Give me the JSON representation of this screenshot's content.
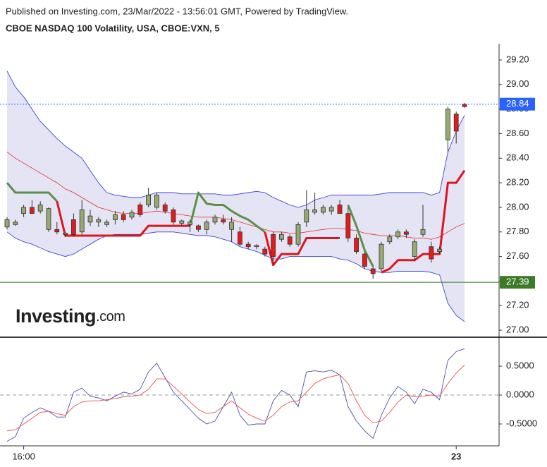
{
  "header": {
    "published": "Published on Investing.com, 23/Mar/2022 - 13:56:01 GMT, Powered by TradingView."
  },
  "logo": {
    "brand": "Investing",
    "suffix": ".com"
  },
  "chart_data": [
    {
      "type": "candlestick",
      "title": "CBOE NASDAQ 100 Volatility, USA, CBOE:VXN, 5",
      "categories": [
        null,
        null,
        "16:00",
        null,
        null,
        null,
        null,
        null,
        null,
        null,
        null,
        null,
        null,
        null,
        null,
        null,
        null,
        null,
        null,
        null,
        null,
        null,
        null,
        null,
        null,
        null,
        null,
        null,
        null,
        null,
        null,
        null,
        null,
        null,
        null,
        null,
        null,
        null,
        null,
        null,
        null,
        null,
        null,
        null,
        null,
        null,
        null,
        null,
        null,
        null,
        null,
        null,
        null,
        null,
        "23",
        null
      ],
      "open": [
        27.84,
        27.86,
        27.95,
        28.0,
        27.97,
        27.82,
        27.82,
        27.78,
        27.9,
        27.8,
        27.88,
        27.88,
        27.86,
        27.9,
        27.94,
        27.92,
        28.02,
        28.02,
        28.0,
        28.02,
        27.98,
        27.87,
        27.86,
        27.85,
        27.82,
        27.88,
        27.9,
        27.82,
        27.8,
        27.7,
        27.68,
        27.66,
        27.78,
        27.74,
        27.76,
        27.7,
        27.88,
        27.96,
        27.96,
        27.97,
        28.02,
        27.95,
        27.75,
        27.62,
        27.5,
        27.5,
        27.72,
        27.76,
        27.8,
        27.6,
        27.78,
        27.68,
        27.64,
        28.55,
        28.76,
        28.84
      ],
      "high": [
        27.92,
        27.9,
        28.02,
        28.06,
        28.05,
        28.0,
        27.88,
        27.8,
        27.95,
        28.06,
        27.98,
        27.92,
        27.9,
        27.97,
        27.97,
        27.98,
        28.04,
        28.16,
        28.12,
        28.04,
        28.0,
        27.9,
        27.9,
        27.86,
        27.9,
        27.94,
        27.94,
        27.92,
        27.84,
        27.72,
        27.7,
        27.68,
        27.8,
        27.8,
        27.78,
        27.88,
        28.14,
        28.12,
        28.02,
        28.02,
        28.06,
        28.0,
        27.78,
        27.64,
        27.52,
        27.72,
        27.78,
        27.82,
        27.82,
        27.74,
        28.02,
        27.72,
        27.68,
        28.82,
        28.78,
        28.85
      ],
      "low": [
        27.82,
        27.85,
        27.92,
        27.96,
        27.95,
        27.8,
        27.78,
        27.76,
        27.76,
        27.78,
        27.85,
        27.84,
        27.84,
        27.86,
        27.88,
        27.9,
        27.92,
        28.0,
        27.98,
        27.95,
        27.86,
        27.85,
        27.8,
        27.8,
        27.78,
        27.86,
        27.86,
        27.72,
        27.68,
        27.66,
        27.66,
        27.6,
        27.54,
        27.72,
        27.68,
        27.68,
        27.84,
        27.94,
        27.94,
        27.94,
        27.96,
        27.72,
        27.62,
        27.5,
        27.42,
        27.48,
        27.7,
        27.74,
        27.75,
        27.56,
        27.76,
        27.55,
        27.62,
        28.45,
        28.52,
        28.81
      ],
      "close": [
        27.9,
        27.88,
        28.0,
        27.95,
        28.02,
        27.99,
        27.8,
        27.79,
        27.78,
        27.98,
        27.93,
        27.9,
        27.88,
        27.94,
        27.9,
        27.96,
        27.94,
        28.1,
        28.1,
        27.97,
        27.88,
        27.89,
        27.88,
        27.82,
        27.88,
        27.92,
        27.88,
        27.88,
        27.7,
        27.68,
        27.69,
        27.62,
        27.6,
        27.78,
        27.7,
        27.86,
        27.98,
        27.98,
        28.0,
        28.0,
        27.95,
        27.75,
        27.64,
        27.52,
        27.46,
        27.7,
        27.76,
        27.8,
        27.78,
        27.72,
        27.82,
        27.58,
        27.66,
        28.8,
        28.62,
        28.82
      ],
      "up_color": "#97a96f",
      "down_color": "#e31b1b",
      "upper": [
        29.11,
        28.98,
        28.9,
        28.8,
        28.7,
        28.63,
        28.56,
        28.5,
        28.45,
        28.4,
        28.3,
        28.2,
        28.12,
        28.1,
        28.09,
        28.08,
        28.08,
        28.1,
        28.12,
        28.12,
        28.12,
        28.11,
        28.11,
        28.11,
        28.11,
        28.11,
        28.1,
        28.1,
        28.11,
        28.12,
        28.13,
        28.12,
        28.08,
        28.05,
        28.02,
        28.0,
        28.02,
        28.06,
        28.08,
        28.1,
        28.1,
        28.1,
        28.1,
        28.1,
        28.1,
        28.11,
        28.12,
        28.12,
        28.12,
        28.12,
        28.12,
        28.1,
        28.12,
        28.45,
        28.62,
        28.75
      ],
      "middle": [
        28.45,
        28.4,
        28.36,
        28.32,
        28.28,
        28.24,
        28.2,
        28.15,
        28.12,
        28.08,
        28.04,
        28.0,
        27.98,
        27.96,
        27.95,
        27.95,
        27.95,
        27.96,
        27.97,
        27.96,
        27.95,
        27.94,
        27.93,
        27.92,
        27.92,
        27.92,
        27.91,
        27.9,
        27.88,
        27.86,
        27.84,
        27.82,
        27.8,
        27.8,
        27.79,
        27.79,
        27.8,
        27.81,
        27.82,
        27.83,
        27.83,
        27.82,
        27.81,
        27.79,
        27.78,
        27.77,
        27.77,
        27.77,
        27.76,
        27.75,
        27.75,
        27.74,
        27.76,
        27.8,
        27.84,
        27.87
      ],
      "lower": [
        27.8,
        27.75,
        27.72,
        27.7,
        27.67,
        27.64,
        27.62,
        27.6,
        27.62,
        27.66,
        27.7,
        27.74,
        27.77,
        27.78,
        27.78,
        27.78,
        27.78,
        27.79,
        27.8,
        27.8,
        27.8,
        27.79,
        27.78,
        27.77,
        27.77,
        27.76,
        27.74,
        27.72,
        27.68,
        27.66,
        27.64,
        27.61,
        27.58,
        27.58,
        27.6,
        27.6,
        27.6,
        27.6,
        27.6,
        27.6,
        27.58,
        27.57,
        27.54,
        27.5,
        27.48,
        27.47,
        27.47,
        27.48,
        27.48,
        27.48,
        27.48,
        27.47,
        27.45,
        27.22,
        27.12,
        27.07
      ],
      "band_color": "#3b46d6",
      "band_fill": "#e4e4f4",
      "middle_color": "#e0302a",
      "trend_up": [
        28.2,
        28.12,
        28.12,
        28.12,
        28.12,
        28.12,
        28.05,
        null,
        null,
        null,
        null,
        null,
        null,
        null,
        null,
        null,
        null,
        null,
        null,
        null,
        null,
        null,
        27.85,
        28.12,
        28.03,
        28.02,
        28.02,
        27.97,
        27.93,
        27.9,
        27.85,
        27.8,
        null,
        null,
        null,
        null,
        null,
        null,
        null,
        null,
        null,
        28.02,
        27.85,
        27.65,
        27.52,
        null,
        null,
        null,
        null,
        null,
        null,
        null,
        null,
        null,
        null,
        null
      ],
      "trend_down": [
        null,
        null,
        null,
        null,
        null,
        null,
        28.05,
        27.77,
        27.77,
        27.77,
        27.77,
        27.77,
        27.77,
        27.77,
        27.77,
        27.77,
        27.77,
        27.85,
        27.85,
        27.85,
        27.85,
        27.85,
        27.85,
        null,
        null,
        null,
        null,
        null,
        null,
        null,
        null,
        27.8,
        27.53,
        27.62,
        27.62,
        27.62,
        27.75,
        27.75,
        27.75,
        27.75,
        27.75,
        null,
        null,
        null,
        null,
        27.47,
        27.5,
        27.57,
        27.57,
        27.57,
        27.62,
        27.62,
        27.62,
        28.2,
        28.2,
        28.3
      ],
      "trend_up_color": "#5c8f48",
      "trend_down_color": "#e0141c",
      "price_lines": [
        {
          "value": 28.84,
          "color": "#2962ff",
          "dashed": true
        },
        {
          "value": 27.39,
          "color": "#3d7a27",
          "dashed": false
        }
      ],
      "ylim": [
        26.943,
        29.332
      ],
      "yticks": [
        {
          "value": 27,
          "label": "27.00"
        },
        {
          "value": 27.2,
          "label": "27.20"
        },
        {
          "value": 27.4,
          "label": "27.40"
        },
        {
          "value": 27.6,
          "label": "27.60"
        },
        {
          "value": 27.8,
          "label": "27.80"
        },
        {
          "value": 28,
          "label": "28.00"
        },
        {
          "value": 28.2,
          "label": "28.20"
        },
        {
          "value": 28.4,
          "label": "28.40"
        },
        {
          "value": 28.6,
          "label": "28.60"
        },
        {
          "value": 28.8,
          "label": "28.80"
        },
        {
          "value": 29,
          "label": "29.00"
        },
        {
          "value": 29.2,
          "label": "29.20"
        }
      ]
    },
    {
      "type": "line",
      "series": [
        {
          "color": "#4a4fb0",
          "values": [
            -0.8,
            -0.72,
            -0.4,
            -0.3,
            -0.22,
            -0.28,
            -0.38,
            -0.38,
            0.05,
            0.12,
            -0.02,
            -0.05,
            -0.1,
            -0.02,
            0.05,
            0.02,
            0.1,
            0.4,
            0.55,
            0.3,
            0.05,
            -0.1,
            -0.25,
            -0.4,
            -0.5,
            -0.45,
            -0.2,
            0.05,
            -0.35,
            -0.52,
            -0.5,
            -0.5,
            -0.1,
            0.08,
            0.0,
            -0.2,
            0.4,
            0.42,
            0.4,
            0.43,
            0.35,
            -0.2,
            -0.45,
            -0.62,
            -0.75,
            -0.35,
            -0.05,
            0.15,
            0.05,
            -0.15,
            0.1,
            0.05,
            -0.08,
            0.6,
            0.75,
            0.8
          ]
        },
        {
          "color": "#e8504a",
          "values": [
            -0.62,
            -0.6,
            -0.5,
            -0.4,
            -0.3,
            -0.28,
            -0.32,
            -0.35,
            -0.2,
            -0.12,
            -0.1,
            -0.1,
            -0.08,
            -0.06,
            -0.03,
            -0.02,
            0.0,
            0.1,
            0.28,
            0.28,
            0.15,
            0.02,
            -0.12,
            -0.25,
            -0.32,
            -0.3,
            -0.2,
            -0.1,
            -0.22,
            -0.33,
            -0.4,
            -0.45,
            -0.35,
            -0.2,
            -0.12,
            -0.1,
            0.05,
            0.2,
            0.28,
            0.32,
            0.35,
            0.2,
            -0.1,
            -0.35,
            -0.48,
            -0.45,
            -0.3,
            -0.12,
            0.0,
            -0.03,
            -0.02,
            0.0,
            -0.02,
            0.2,
            0.38,
            0.52
          ]
        }
      ],
      "baseline": 0,
      "ylim": [
        -0.878,
        0.976
      ],
      "yticks": [
        {
          "value": -0.5,
          "label": "-0.5000"
        },
        {
          "value": 0,
          "label": "0.0000"
        },
        {
          "value": 0.5,
          "label": "0.5000"
        }
      ]
    }
  ]
}
